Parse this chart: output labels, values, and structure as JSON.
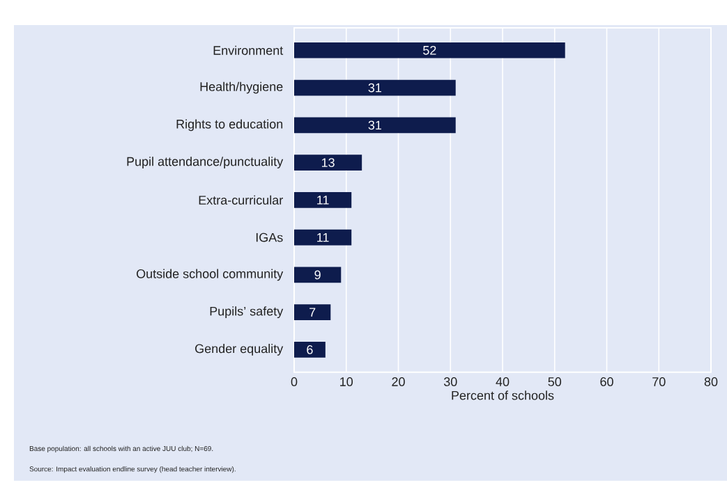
{
  "chart_data": {
    "type": "bar",
    "orientation": "horizontal",
    "categories": [
      "Environment",
      "Health/hygiene",
      "Rights to education",
      "Pupil attendance/punctuality",
      "Extra-curricular",
      "IGAs",
      "Outside school community",
      "Pupils’ safety",
      "Gender equality"
    ],
    "values": [
      52,
      31,
      31,
      13,
      11,
      11,
      9,
      7,
      6
    ],
    "color": "#0e1c4d",
    "data_labels": true,
    "xlim": [
      0,
      80
    ],
    "xticks": [
      0,
      10,
      20,
      30,
      40,
      50,
      60,
      70,
      80
    ],
    "xlabel": "Percent of schools",
    "grid": "x",
    "annotations": [
      "Base population: all schools with an active JUU club; N=69.",
      "Source: Impact evaluation endline survey (head teacher interview)."
    ]
  }
}
